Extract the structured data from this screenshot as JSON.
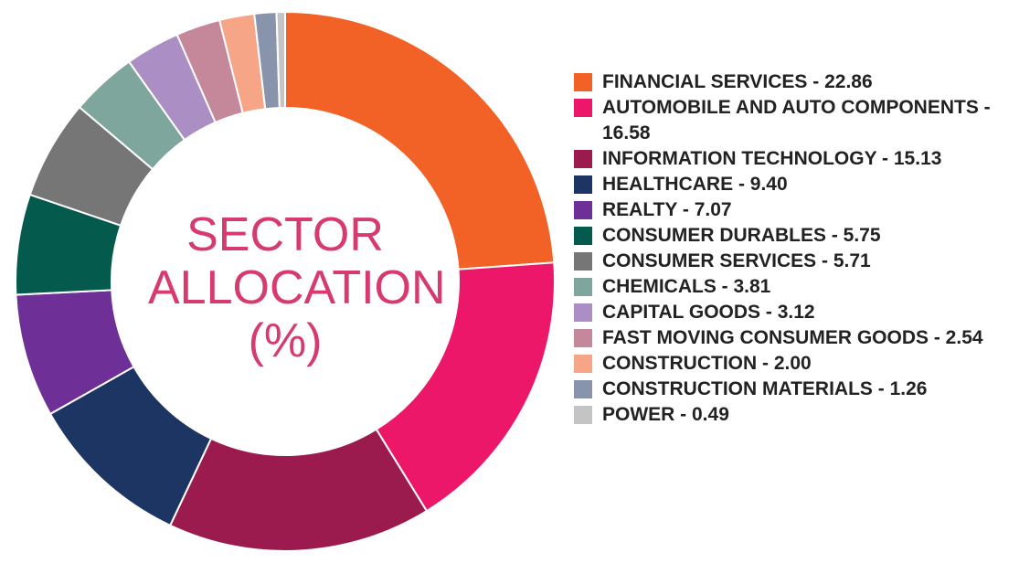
{
  "chart_data": {
    "type": "pie",
    "title_lines": [
      "SECTOR",
      "ALLOCATION",
      "(%)"
    ],
    "legend_position": "right",
    "slices": [
      {
        "label": "FINANCIAL SERVICES - 22.86",
        "value": 22.86,
        "color": "#f26125"
      },
      {
        "label": "AUTOMOBILE AND AUTO COMPONENTS - 16.58",
        "value": 16.58,
        "color": "#ec1768"
      },
      {
        "label": "INFORMATION TECHNOLOGY - 15.13",
        "value": 15.13,
        "color": "#9b1b4f"
      },
      {
        "label": "HEALTHCARE - 9.40",
        "value": 9.4,
        "color": "#1d3563"
      },
      {
        "label": "REALTY - 7.07",
        "value": 7.07,
        "color": "#6e2f96"
      },
      {
        "label": "CONSUMER DURABLES - 5.75",
        "value": 5.75,
        "color": "#045a4c"
      },
      {
        "label": "CONSUMER SERVICES - 5.71",
        "value": 5.71,
        "color": "#767676"
      },
      {
        "label": "CHEMICALS - 3.81",
        "value": 3.81,
        "color": "#7fa69c"
      },
      {
        "label": "CAPITAL GOODS - 3.12",
        "value": 3.12,
        "color": "#ab8ec4"
      },
      {
        "label": "FAST MOVING CONSUMER GOODS - 2.54",
        "value": 2.54,
        "color": "#c5879a"
      },
      {
        "label": "CONSTRUCTION - 2.00",
        "value": 2.0,
        "color": "#f6a587"
      },
      {
        "label": "CONSTRUCTION MATERIALS - 1.26",
        "value": 1.26,
        "color": "#8894ab"
      },
      {
        "label": "POWER - 0.49",
        "value": 0.49,
        "color": "#c4c4c4"
      }
    ]
  }
}
